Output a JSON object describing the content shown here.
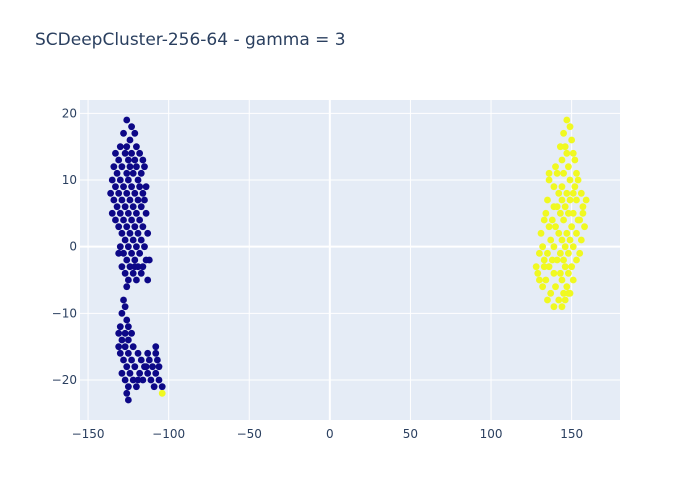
{
  "chart_data": {
    "type": "scatter",
    "title": "SCDeepCluster-256-64 - gamma = 3",
    "xlabel": "",
    "ylabel": "",
    "xlim": [
      -155,
      180
    ],
    "ylim": [
      -26,
      22
    ],
    "x_ticks": [
      -150,
      -100,
      -50,
      0,
      50,
      100,
      150
    ],
    "y_ticks": [
      -20,
      -10,
      0,
      10,
      20
    ],
    "grid": true,
    "legend": "none",
    "colors": {
      "cluster_0": "#0d0887",
      "cluster_1": "#f0f921",
      "plot_bg": "#e5ecf6",
      "grid": "#ffffff",
      "text": "#2a3f5f"
    },
    "series": [
      {
        "color": "#0d0887",
        "points": [
          [
            -126,
            19
          ],
          [
            -123,
            18
          ],
          [
            -128,
            17
          ],
          [
            -121,
            17
          ],
          [
            -124,
            16
          ],
          [
            -130,
            15
          ],
          [
            -126,
            15
          ],
          [
            -120,
            15
          ],
          [
            -133,
            14
          ],
          [
            -127,
            14
          ],
          [
            -123,
            14
          ],
          [
            -118,
            14
          ],
          [
            -131,
            13
          ],
          [
            -125,
            13
          ],
          [
            -121,
            13
          ],
          [
            -116,
            13
          ],
          [
            -134,
            12
          ],
          [
            -129,
            12
          ],
          [
            -124,
            12
          ],
          [
            -120,
            12
          ],
          [
            -115,
            12
          ],
          [
            -132,
            11
          ],
          [
            -126,
            11
          ],
          [
            -122,
            11
          ],
          [
            -117,
            11
          ],
          [
            -135,
            10
          ],
          [
            -130,
            10
          ],
          [
            -125,
            10
          ],
          [
            -119,
            10
          ],
          [
            -133,
            9
          ],
          [
            -128,
            9
          ],
          [
            -123,
            9
          ],
          [
            -118,
            9
          ],
          [
            -114,
            9
          ],
          [
            -136,
            8
          ],
          [
            -131,
            8
          ],
          [
            -126,
            8
          ],
          [
            -121,
            8
          ],
          [
            -116,
            8
          ],
          [
            -134,
            7
          ],
          [
            -129,
            7
          ],
          [
            -124,
            7
          ],
          [
            -119,
            7
          ],
          [
            -115,
            7
          ],
          [
            -132,
            6
          ],
          [
            -127,
            6
          ],
          [
            -122,
            6
          ],
          [
            -117,
            6
          ],
          [
            -135,
            5
          ],
          [
            -130,
            5
          ],
          [
            -125,
            5
          ],
          [
            -120,
            5
          ],
          [
            -114,
            5
          ],
          [
            -133,
            4
          ],
          [
            -128,
            4
          ],
          [
            -123,
            4
          ],
          [
            -118,
            4
          ],
          [
            -131,
            3
          ],
          [
            -126,
            3
          ],
          [
            -121,
            3
          ],
          [
            -116,
            3
          ],
          [
            -129,
            2
          ],
          [
            -124,
            2
          ],
          [
            -119,
            2
          ],
          [
            -113,
            2
          ],
          [
            -127,
            1
          ],
          [
            -122,
            1
          ],
          [
            -117,
            1
          ],
          [
            -130,
            0
          ],
          [
            -125,
            0
          ],
          [
            -120,
            0
          ],
          [
            -115,
            0
          ],
          [
            -128,
            -1
          ],
          [
            -123,
            -1
          ],
          [
            -118,
            -1
          ],
          [
            -126,
            -2
          ],
          [
            -121,
            -2
          ],
          [
            -114,
            -2
          ],
          [
            -129,
            -3
          ],
          [
            -124,
            -3
          ],
          [
            -119,
            -3
          ],
          [
            -127,
            -4
          ],
          [
            -122,
            -4
          ],
          [
            -117,
            -4
          ],
          [
            -125,
            -5
          ],
          [
            -120,
            -5
          ],
          [
            -126,
            -6
          ],
          [
            -112,
            -2
          ],
          [
            -113,
            -5
          ],
          [
            -121,
            -3
          ],
          [
            -131,
            -1
          ],
          [
            -116,
            -3
          ],
          [
            -128,
            -8
          ],
          [
            -127,
            -9
          ],
          [
            -129,
            -10
          ],
          [
            -126,
            -11
          ],
          [
            -130,
            -12
          ],
          [
            -125,
            -12
          ],
          [
            -131,
            -13
          ],
          [
            -127,
            -13
          ],
          [
            -123,
            -13
          ],
          [
            -129,
            -14
          ],
          [
            -125,
            -14
          ],
          [
            -131,
            -15
          ],
          [
            -127,
            -15
          ],
          [
            -122,
            -15
          ],
          [
            -108,
            -15
          ],
          [
            -130,
            -16
          ],
          [
            -125,
            -16
          ],
          [
            -119,
            -16
          ],
          [
            -113,
            -16
          ],
          [
            -108,
            -16
          ],
          [
            -128,
            -17
          ],
          [
            -123,
            -17
          ],
          [
            -117,
            -17
          ],
          [
            -112,
            -17
          ],
          [
            -107,
            -17
          ],
          [
            -126,
            -18
          ],
          [
            -121,
            -18
          ],
          [
            -115,
            -18
          ],
          [
            -110,
            -18
          ],
          [
            -106,
            -18
          ],
          [
            -129,
            -19
          ],
          [
            -124,
            -19
          ],
          [
            -118,
            -19
          ],
          [
            -113,
            -19
          ],
          [
            -108,
            -19
          ],
          [
            -127,
            -20
          ],
          [
            -122,
            -20
          ],
          [
            -116,
            -20
          ],
          [
            -111,
            -20
          ],
          [
            -106,
            -20
          ],
          [
            -125,
            -21
          ],
          [
            -120,
            -21
          ],
          [
            -109,
            -21
          ],
          [
            -104,
            -21
          ],
          [
            -126,
            -22
          ],
          [
            -125,
            -23
          ],
          [
            -114,
            -18
          ],
          [
            -119,
            -20
          ]
        ]
      },
      {
        "color": "#f0f921",
        "points": [
          [
            147,
            19
          ],
          [
            149,
            18
          ],
          [
            145,
            17
          ],
          [
            150,
            16
          ],
          [
            146,
            15
          ],
          [
            143,
            15
          ],
          [
            151,
            14
          ],
          [
            147,
            14
          ],
          [
            144,
            13
          ],
          [
            152,
            13
          ],
          [
            148,
            12
          ],
          [
            140,
            12
          ],
          [
            145,
            11
          ],
          [
            153,
            11
          ],
          [
            141,
            11
          ],
          [
            149,
            10
          ],
          [
            136,
            10
          ],
          [
            154,
            10
          ],
          [
            144,
            9
          ],
          [
            139,
            9
          ],
          [
            151,
            8
          ],
          [
            147,
            8
          ],
          [
            142,
            8
          ],
          [
            156,
            8
          ],
          [
            135,
            7
          ],
          [
            149,
            7
          ],
          [
            144,
            7
          ],
          [
            153,
            7
          ],
          [
            139,
            6
          ],
          [
            157,
            6
          ],
          [
            146,
            6
          ],
          [
            141,
            6
          ],
          [
            134,
            5
          ],
          [
            151,
            5
          ],
          [
            148,
            5
          ],
          [
            143,
            5
          ],
          [
            138,
            4
          ],
          [
            155,
            4
          ],
          [
            133,
            4
          ],
          [
            145,
            4
          ],
          [
            150,
            3
          ],
          [
            140,
            3
          ],
          [
            158,
            3
          ],
          [
            136,
            3
          ],
          [
            147,
            2
          ],
          [
            131,
            2
          ],
          [
            153,
            2
          ],
          [
            142,
            2
          ],
          [
            137,
            1
          ],
          [
            149,
            1
          ],
          [
            144,
            1
          ],
          [
            156,
            1
          ],
          [
            132,
            0
          ],
          [
            146,
            0
          ],
          [
            139,
            0
          ],
          [
            151,
            0
          ],
          [
            135,
            -1
          ],
          [
            148,
            -1
          ],
          [
            143,
            -1
          ],
          [
            130,
            -1
          ],
          [
            153,
            -2
          ],
          [
            138,
            -2
          ],
          [
            145,
            -2
          ],
          [
            141,
            -2
          ],
          [
            133,
            -3
          ],
          [
            150,
            -3
          ],
          [
            146,
            -3
          ],
          [
            136,
            -3
          ],
          [
            143,
            -4
          ],
          [
            129,
            -4
          ],
          [
            148,
            -4
          ],
          [
            139,
            -4
          ],
          [
            134,
            -5
          ],
          [
            151,
            -5
          ],
          [
            144,
            -5
          ],
          [
            140,
            -6
          ],
          [
            147,
            -6
          ],
          [
            132,
            -6
          ],
          [
            137,
            -7
          ],
          [
            145,
            -7
          ],
          [
            149,
            -7
          ],
          [
            142,
            -8
          ],
          [
            135,
            -8
          ],
          [
            146,
            -8
          ],
          [
            139,
            -9
          ],
          [
            144,
            -9
          ],
          [
            148,
            -7
          ],
          [
            133,
            -2
          ],
          [
            155,
            -1
          ],
          [
            128,
            -3
          ],
          [
            157,
            5
          ],
          [
            152,
            9
          ],
          [
            154,
            4
          ],
          [
            136,
            11
          ],
          [
            159,
            7
          ],
          [
            130,
            -5
          ],
          [
            -104,
            -22
          ]
        ]
      }
    ]
  }
}
